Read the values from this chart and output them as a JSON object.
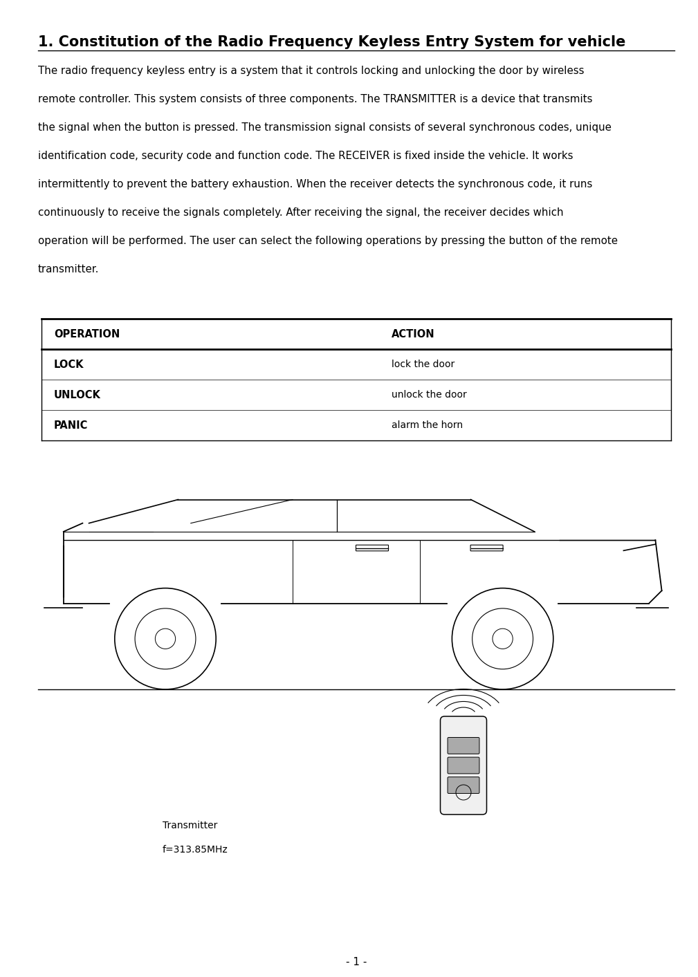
{
  "title": "1. Constitution of the Radio Frequency Keyless Entry System for vehicle",
  "body_lines": [
    "The radio frequency keyless entry is a system that it controls locking and unlocking the door by wireless",
    "remote controller. This system consists of three components. The TRANSMITTER is a device that transmits",
    "the signal when the button is pressed. The transmission signal consists of several synchronous codes, unique",
    "identification code, security code and function code. The RECEIVER is fixed inside the vehicle. It works",
    "intermittently to prevent the battery exhaustion. When the receiver detects the synchronous code, it runs",
    "continuously to receive the signals completely. After receiving the signal, the receiver decides which",
    "operation will be performed. The user can select the following operations by pressing the button of the remote",
    "transmitter."
  ],
  "table_headers": [
    "OPERATION",
    "ACTION"
  ],
  "table_rows": [
    [
      "LOCK",
      "lock the door"
    ],
    [
      "UNLOCK",
      "unlock the door"
    ],
    [
      "PANIC",
      "alarm the horn"
    ]
  ],
  "transmitter_label_line1": "Transmitter",
  "transmitter_label_line2": "f=313.85MHz",
  "page_number": "- 1 -",
  "bg_color": "#ffffff",
  "text_color": "#000000",
  "title_fontsize": 15,
  "body_fontsize": 10.8,
  "table_header_fontsize": 10.5,
  "table_row_op_fontsize": 10.5,
  "table_row_action_fontsize": 10,
  "transmitter_label_fontsize": 10,
  "page_num_fontsize": 11
}
